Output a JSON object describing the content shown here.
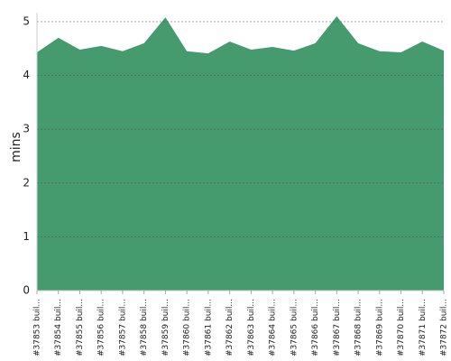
{
  "chart_data": {
    "type": "area",
    "y_label": "mins",
    "categories": [
      "#37853 buil...",
      "#37854 buil...",
      "#37855 buil...",
      "#37856 buil...",
      "#37857 buil...",
      "#37858 buil...",
      "#37859 buil...",
      "#37860 buil...",
      "#37861 buil...",
      "#37862 buil...",
      "#37863 buil...",
      "#37864 buil...",
      "#37865 buil...",
      "#37866 buil...",
      "#37867 buil...",
      "#37868 buil...",
      "#37869 buil...",
      "#37870 buil...",
      "#37871 buil...",
      "#37872 buil..."
    ],
    "values": [
      4.43,
      4.7,
      4.48,
      4.55,
      4.45,
      4.6,
      5.08,
      4.45,
      4.41,
      4.63,
      4.48,
      4.53,
      4.46,
      4.6,
      5.1,
      4.6,
      4.45,
      4.43,
      4.63,
      4.46
    ],
    "color": "#459b6d",
    "ylim": [
      0,
      5
    ],
    "yticks": [
      0,
      1,
      2,
      3,
      4,
      5
    ],
    "grid": true
  }
}
